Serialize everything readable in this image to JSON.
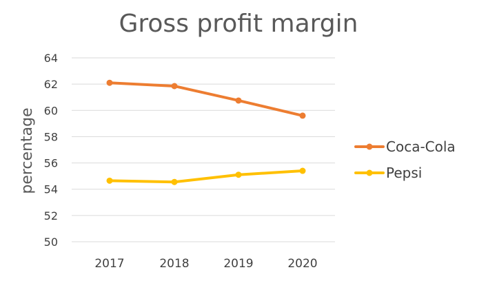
{
  "chart_data": {
    "type": "line",
    "title": "Gross profit margin",
    "xlabel": "",
    "ylabel": "percentage",
    "categories": [
      "2017",
      "2018",
      "2019",
      "2020"
    ],
    "ylim": [
      50,
      64
    ],
    "yticks": [
      50,
      52,
      54,
      56,
      58,
      60,
      62,
      64
    ],
    "grid": true,
    "legend_position": "right",
    "series": [
      {
        "name": "Coca-Cola",
        "values": [
          62.1,
          61.85,
          60.75,
          59.6
        ],
        "color": "#ED7D31"
      },
      {
        "name": "Pepsi",
        "values": [
          54.65,
          54.55,
          55.1,
          55.4
        ],
        "color": "#FFC000"
      }
    ]
  }
}
